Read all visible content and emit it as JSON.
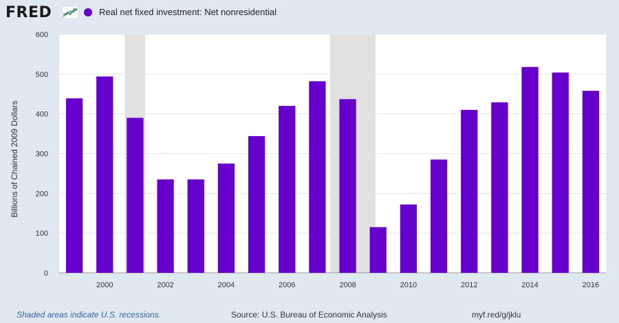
{
  "header": {
    "logo_text": "FRED",
    "logo_mark_icon": "trend-line-icon"
  },
  "footer": {
    "recession_note": "Shaded areas indicate U.S. recessions.",
    "source": "Source: U.S. Bureau of Economic Analysis",
    "url": "myf.red/g/jklu"
  },
  "colors": {
    "bar": "#6600cc",
    "recession": "#e1e1e1",
    "plot_bg": "#ffffff",
    "page_bg": "#e1e9f0"
  },
  "chart_data": {
    "type": "bar",
    "title": "",
    "xlabel": "",
    "ylabel": "Billions of Chained 2009 Dollars",
    "ylim": [
      0,
      600
    ],
    "yticks": [
      0,
      100,
      200,
      300,
      400,
      500,
      600
    ],
    "xticks": [
      "2000",
      "2002",
      "2004",
      "2006",
      "2008",
      "2010",
      "2012",
      "2014",
      "2016"
    ],
    "grid": true,
    "legend_position": "top",
    "categories": [
      "1999",
      "2000",
      "2001",
      "2002",
      "2003",
      "2004",
      "2005",
      "2006",
      "2007",
      "2008",
      "2009",
      "2010",
      "2011",
      "2012",
      "2013",
      "2014",
      "2015",
      "2016"
    ],
    "series": [
      {
        "name": "Real net fixed investment: Net nonresidential",
        "values": [
          439,
          494,
          390,
          235,
          235,
          275,
          344,
          420,
          482,
          437,
          115,
          172,
          285,
          410,
          429,
          518,
          504,
          458
        ]
      }
    ],
    "recessions": [
      [
        "2001-03-01",
        "2001-11-01"
      ],
      [
        "2007-12-01",
        "2009-06-01"
      ]
    ]
  }
}
